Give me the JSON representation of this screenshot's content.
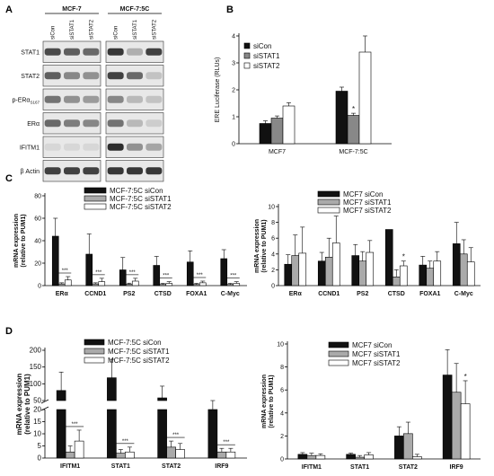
{
  "panel_labels": {
    "a": "A",
    "b": "B",
    "c": "C",
    "d": "D"
  },
  "blot": {
    "groups": [
      "MCF-7",
      "MCF-7:5C"
    ],
    "lanes": [
      "siCon",
      "siSTAT1",
      "siSTAT2",
      "siCon",
      "siSTAT1",
      "siSTAT2"
    ],
    "proteins": [
      {
        "label": "STAT1",
        "sub": "",
        "bands": [
          0.75,
          0.65,
          0.6,
          0.85,
          0.25,
          0.8
        ]
      },
      {
        "label": "STAT2",
        "sub": "",
        "bands": [
          0.65,
          0.45,
          0.4,
          0.8,
          0.6,
          0.15
        ]
      },
      {
        "label": "p-ERα",
        "sub": "S167",
        "bands": [
          0.55,
          0.4,
          0.35,
          0.45,
          0.2,
          0.15
        ]
      },
      {
        "label": "ERα",
        "sub": "",
        "bands": [
          0.6,
          0.5,
          0.45,
          0.55,
          0.2,
          0.1
        ]
      },
      {
        "label": "IFITM1",
        "sub": "",
        "bands": [
          0.05,
          0.05,
          0.05,
          0.9,
          0.4,
          0.3
        ]
      },
      {
        "label": "β Actin",
        "sub": "",
        "bands": [
          0.8,
          0.8,
          0.8,
          0.85,
          0.85,
          0.85
        ]
      }
    ]
  },
  "chart_data": [
    {
      "id": "B",
      "type": "bar",
      "ylabel": "ERE Luciferase (RLUs)",
      "categories": [
        "MCF7",
        "MCF-7:5C"
      ],
      "ylim": [
        0,
        4
      ],
      "yticks": [
        0,
        1,
        2,
        3,
        4
      ],
      "series": [
        {
          "name": "siCon",
          "fill": "#111111",
          "values": [
            0.75,
            1.95
          ],
          "errors": [
            0.1,
            0.15
          ]
        },
        {
          "name": "siSTAT1",
          "fill": "#888888",
          "values": [
            0.95,
            1.05
          ],
          "errors": [
            0.08,
            0.08
          ]
        },
        {
          "name": "siSTAT2",
          "fill": "#ffffff",
          "values": [
            1.4,
            3.4
          ],
          "errors": [
            0.12,
            1.0
          ]
        }
      ],
      "annotations": [
        {
          "text": "*",
          "category": 1,
          "series": 1
        }
      ],
      "legend": "top-left"
    },
    {
      "id": "C-left",
      "type": "bar",
      "ylabel": "mRNA expression",
      "ylabel2": "(relative to PUM1)",
      "categories": [
        "ERα",
        "CCND1",
        "PS2",
        "CTSD",
        "FOXA1",
        "C-Myc"
      ],
      "ylim": [
        0,
        80
      ],
      "yticks": [
        0,
        20,
        40,
        60,
        80
      ],
      "series": [
        {
          "name": "MCF-7:5C siCon",
          "fill": "#111111",
          "values": [
            44,
            28,
            14,
            18,
            21,
            24
          ],
          "errors": [
            16,
            18,
            11,
            8,
            10,
            8
          ]
        },
        {
          "name": "MCF-7:5C siSTAT1",
          "fill": "#aaaaaa",
          "values": [
            1.5,
            1.5,
            1.2,
            1,
            1,
            1
          ],
          "errors": [
            1,
            1,
            1,
            1,
            1,
            1
          ]
        },
        {
          "name": "MCF-7:5C siSTAT2",
          "fill": "#ffffff",
          "values": [
            5,
            3.5,
            4,
            2,
            2.5,
            2
          ],
          "errors": [
            3,
            3,
            2.5,
            1.5,
            1.5,
            1.5
          ]
        }
      ],
      "sig_labels": [
        "***",
        "***",
        "***",
        "***",
        "***",
        "***"
      ],
      "legend": "top-right"
    },
    {
      "id": "C-right",
      "type": "bar",
      "ylabel": "mRNA expression",
      "ylabel2": "(relative to PUM1)",
      "categories": [
        "ERα",
        "CCND1",
        "PS2",
        "CTSD",
        "FOXA1",
        "C-Myc"
      ],
      "ylim": [
        0,
        10
      ],
      "yticks": [
        0,
        2,
        4,
        6,
        8,
        10
      ],
      "series": [
        {
          "name": "MCF7 siCon",
          "fill": "#111111",
          "values": [
            2.7,
            3.1,
            3.8,
            7.1,
            2.6,
            5.3
          ],
          "errors": [
            1.2,
            1.1,
            1.4,
            0,
            1.1,
            2.7
          ]
        },
        {
          "name": "MCF7 siSTAT1",
          "fill": "#aaaaaa",
          "values": [
            3.8,
            3.6,
            3.1,
            1.1,
            2.2,
            4.0
          ],
          "errors": [
            2.6,
            2.4,
            1.2,
            0.9,
            0.9,
            1.8
          ]
        },
        {
          "name": "MCF7 siSTAT2",
          "fill": "#ffffff",
          "values": [
            4.1,
            5.4,
            4.2,
            2.5,
            3.1,
            3.0
          ],
          "errors": [
            3.3,
            3.4,
            1.5,
            0.6,
            1.2,
            1.8
          ]
        }
      ],
      "annotations": [
        {
          "text": "*",
          "category": 3,
          "series": 2
        }
      ],
      "legend": "top-right"
    },
    {
      "id": "D-left",
      "type": "bar",
      "ylabel": "mRNA expression",
      "ylabel2": "(relative to PUM1)",
      "categories": [
        "IFITM1",
        "STAT1",
        "STAT2",
        "IRF9"
      ],
      "axis_break": true,
      "ylim_upper": [
        50,
        200
      ],
      "yticks_upper": [
        50,
        100,
        150,
        200
      ],
      "ylim_lower": [
        0,
        20
      ],
      "yticks_lower": [
        0,
        5,
        10,
        15,
        20
      ],
      "series": [
        {
          "name": "MCF-7:5C siCon",
          "fill": "#111111",
          "values": [
            80,
            118,
            58,
            30
          ],
          "errors": [
            55,
            55,
            35,
            20
          ]
        },
        {
          "name": "MCF-7:5C siSTAT1",
          "fill": "#aaaaaa",
          "values": [
            2.5,
            2,
            4.5,
            2.5
          ],
          "errors": [
            2.5,
            1.5,
            2.5,
            1.5
          ]
        },
        {
          "name": "MCF-7:5C siSTAT2",
          "fill": "#ffffff",
          "values": [
            7,
            2.5,
            3.5,
            2.5
          ],
          "errors": [
            4.5,
            2,
            2.5,
            1.5
          ]
        }
      ],
      "sig_labels": [
        "***",
        "***",
        "***",
        "***"
      ],
      "legend": "top-right"
    },
    {
      "id": "D-right",
      "type": "bar",
      "ylabel": "mRNA expression",
      "ylabel2": "(relative to PUM1)",
      "categories": [
        "IFITM1",
        "STAT1",
        "STAT2",
        "IRF9"
      ],
      "ylim": [
        0,
        10
      ],
      "yticks": [
        0,
        2,
        4,
        6,
        8,
        10
      ],
      "series": [
        {
          "name": "MCF7 siCon",
          "fill": "#111111",
          "values": [
            0.4,
            0.4,
            2.0,
            7.3
          ],
          "errors": [
            0.15,
            0.1,
            0.8,
            2.2
          ]
        },
        {
          "name": "MCF7 siSTAT1",
          "fill": "#aaaaaa",
          "values": [
            0.3,
            0.15,
            2.2,
            5.8
          ],
          "errors": [
            0.2,
            0.15,
            1.0,
            2.5
          ]
        },
        {
          "name": "MCF7 siSTAT2",
          "fill": "#ffffff",
          "values": [
            0.3,
            0.35,
            0.2,
            4.8
          ],
          "errors": [
            0.15,
            0.2,
            0.2,
            2.0
          ]
        }
      ],
      "annotations": [
        {
          "text": "*",
          "category": 3,
          "series": 2
        }
      ],
      "legend": "top-right"
    }
  ]
}
